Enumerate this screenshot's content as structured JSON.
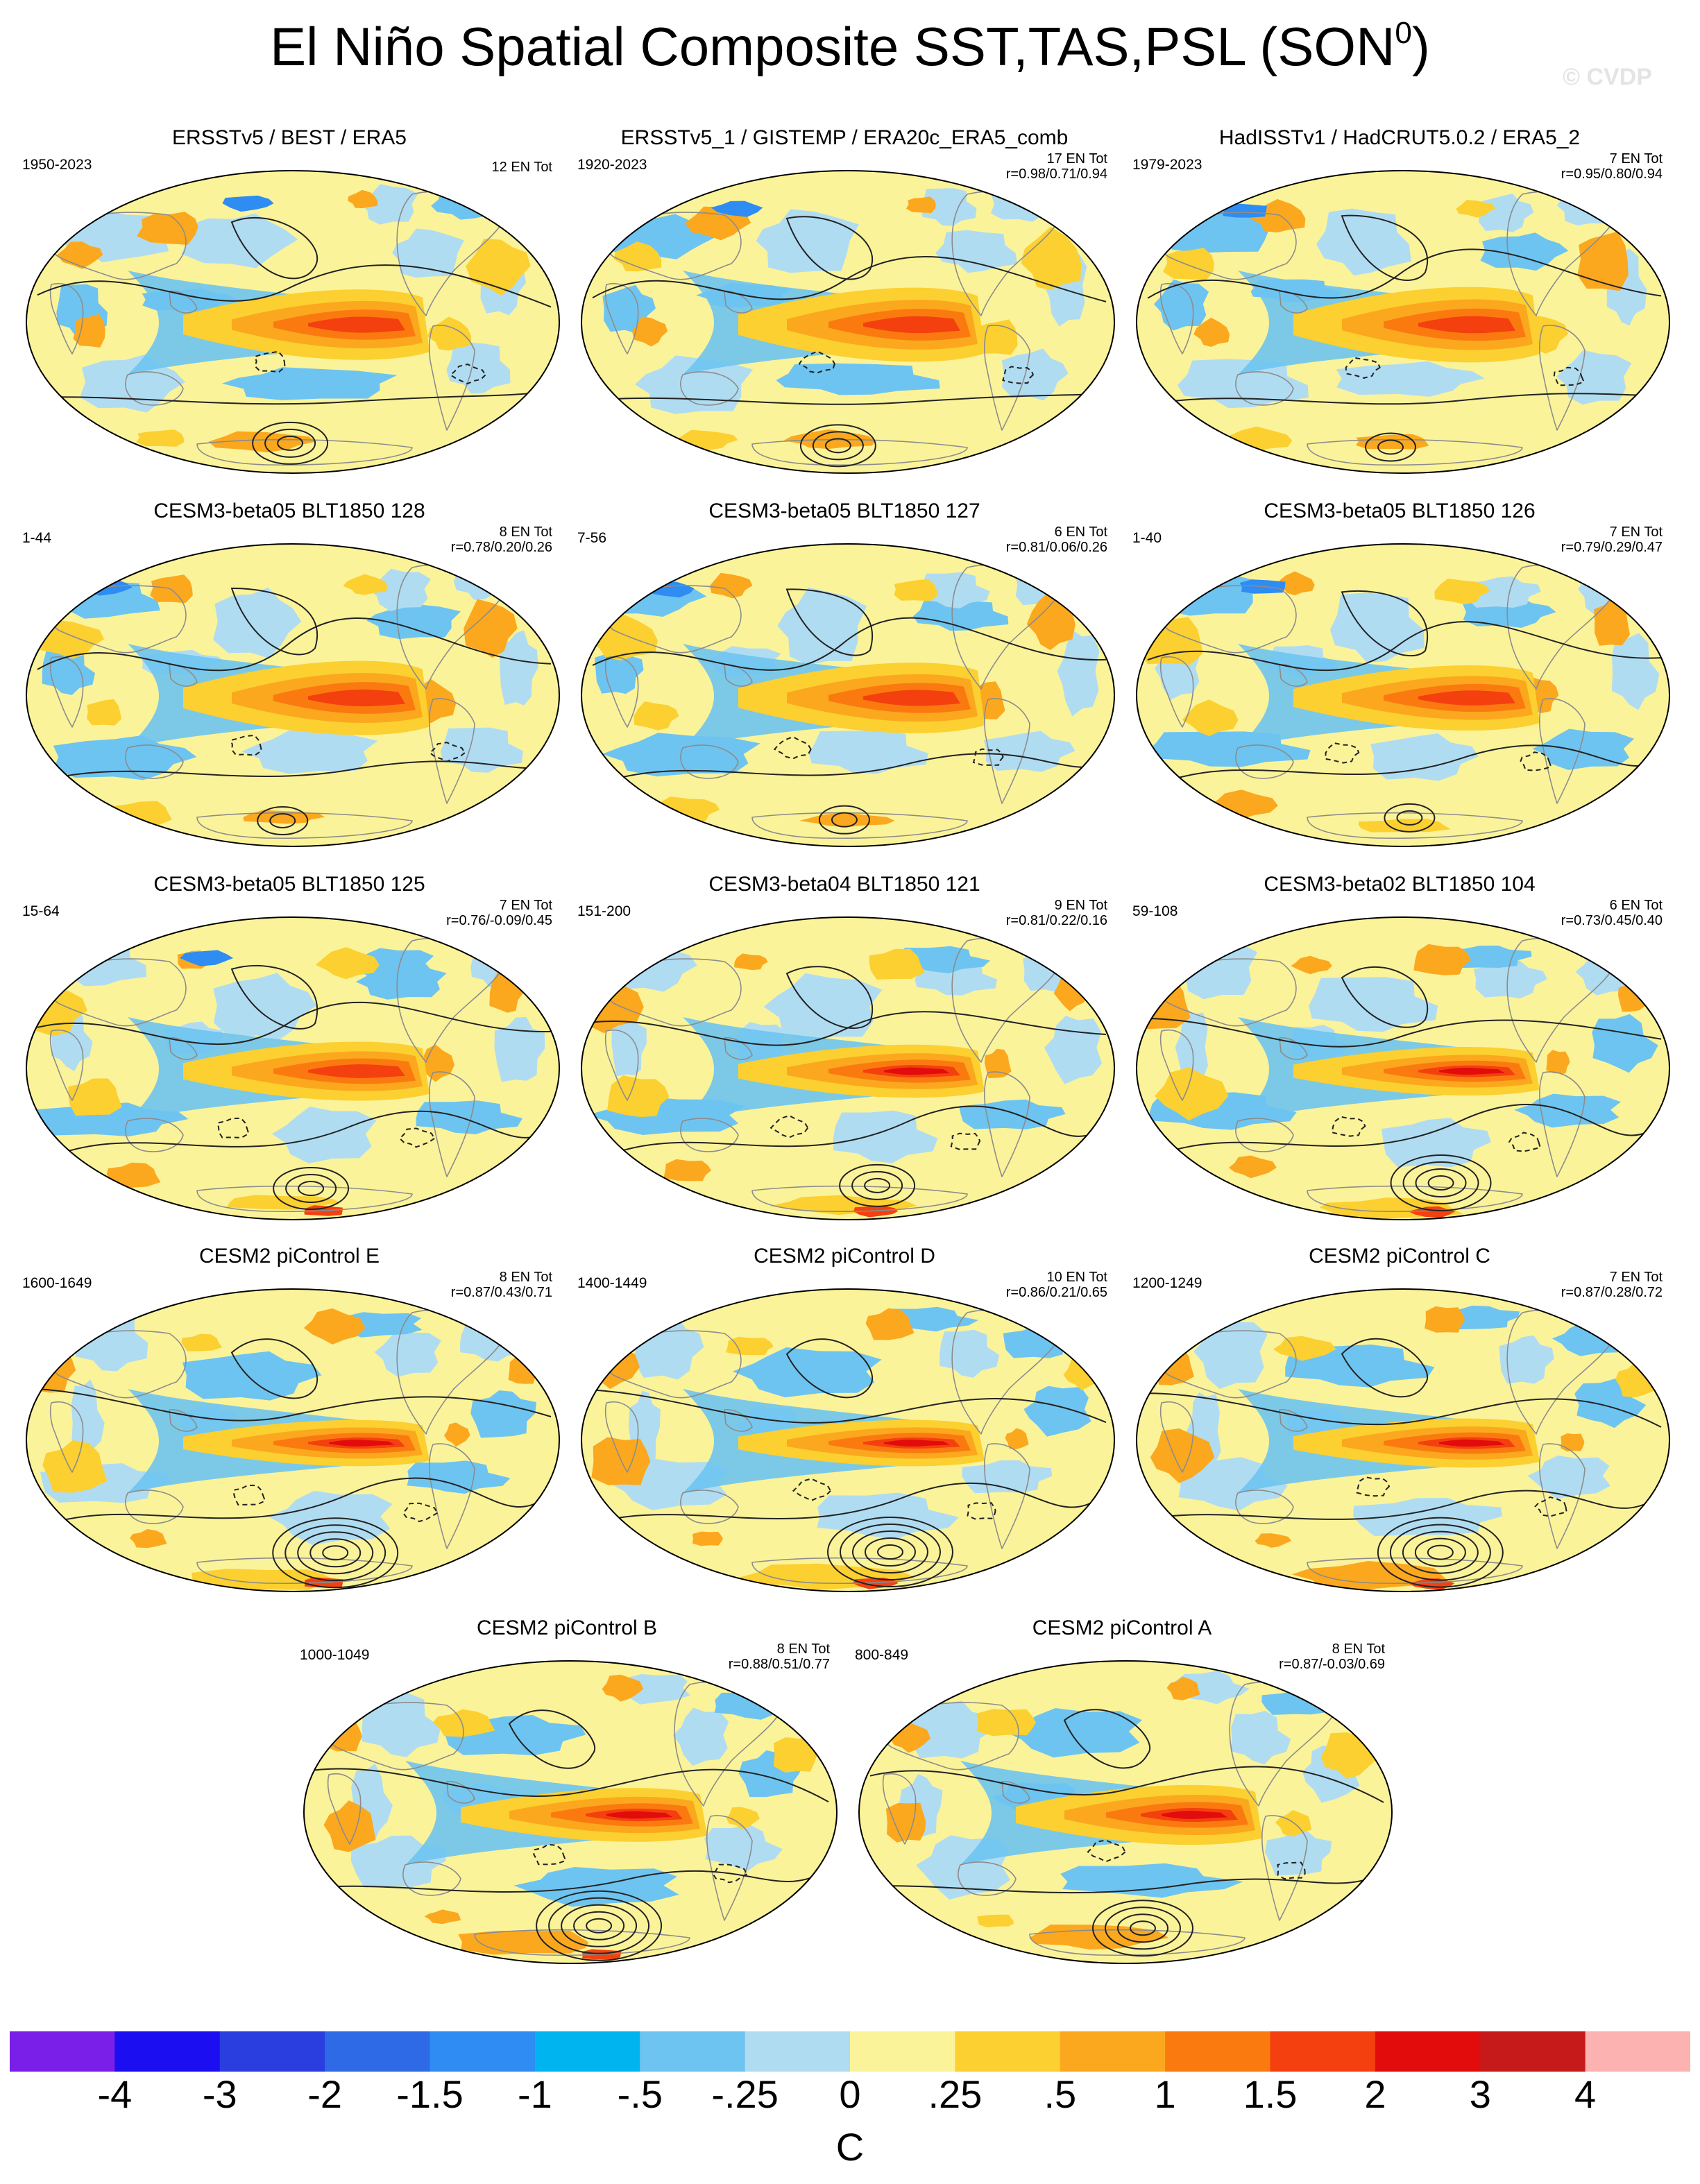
{
  "title": {
    "main": "El Niño Spatial Composite SST,TAS,PSL (SON",
    "superscript": "0",
    "close": ")"
  },
  "watermark": "© CVDP",
  "colors": {
    "levels": [
      "#7a1fe8",
      "#1b0ef0",
      "#2a3ee0",
      "#2f6ae6",
      "#2e8cf2",
      "#00b4f0",
      "#6ec4f0",
      "#b0dcf2",
      "#fbf39a",
      "#fbd030",
      "#fba81e",
      "#fb7a10",
      "#f4400e",
      "#e20c0c",
      "#c61a1a",
      "#fdb2b2"
    ],
    "continent_outline": "#8c8c8c",
    "contour": "#222222"
  },
  "panels": [
    {
      "title": "ERSSTv5 / BEST / ERA5",
      "years": "1950-2023",
      "en_tot": "12 EN Tot",
      "r": ""
    },
    {
      "title": "ERSSTv5_1 / GISTEMP / ERA20c_ERA5_comb",
      "years": "1920-2023",
      "en_tot": "17 EN Tot",
      "r": "r=0.98/0.71/0.94"
    },
    {
      "title": "HadISSTv1 / HadCRUT5.0.2 / ERA5_2",
      "years": "1979-2023",
      "en_tot": "7 EN Tot",
      "r": "r=0.95/0.80/0.94"
    },
    {
      "title": "CESM3-beta05 BLT1850 128",
      "years": "1-44",
      "en_tot": "8 EN Tot",
      "r": "r=0.78/0.20/0.26"
    },
    {
      "title": "CESM3-beta05 BLT1850 127",
      "years": "7-56",
      "en_tot": "6 EN Tot",
      "r": "r=0.81/0.06/0.26"
    },
    {
      "title": "CESM3-beta05 BLT1850 126",
      "years": "1-40",
      "en_tot": "7 EN Tot",
      "r": "r=0.79/0.29/0.47"
    },
    {
      "title": "CESM3-beta05 BLT1850 125",
      "years": "15-64",
      "en_tot": "7 EN Tot",
      "r": "r=0.76/-0.09/0.45"
    },
    {
      "title": "CESM3-beta04 BLT1850 121",
      "years": "151-200",
      "en_tot": "9 EN Tot",
      "r": "r=0.81/0.22/0.16"
    },
    {
      "title": "CESM3-beta02 BLT1850 104",
      "years": "59-108",
      "en_tot": "6 EN Tot",
      "r": "r=0.73/0.45/0.40"
    },
    {
      "title": "CESM2 piControl E",
      "years": "1600-1649",
      "en_tot": "8 EN Tot",
      "r": "r=0.87/0.43/0.71"
    },
    {
      "title": "CESM2 piControl D",
      "years": "1400-1449",
      "en_tot": "10 EN Tot",
      "r": "r=0.86/0.21/0.65"
    },
    {
      "title": "CESM2 piControl C",
      "years": "1200-1249",
      "en_tot": "7 EN Tot",
      "r": "r=0.87/0.28/0.72"
    },
    {
      "title": "CESM2 piControl B",
      "years": "1000-1049",
      "en_tot": "8 EN Tot",
      "r": "r=0.88/0.51/0.77"
    },
    {
      "title": "CESM2 piControl A",
      "years": "800-849",
      "en_tot": "8 EN Tot",
      "r": "r=0.87/-0.03/0.69"
    }
  ],
  "colorbar": {
    "labels": [
      "-4",
      "-3",
      "-2",
      "-1.5",
      "-1",
      "-.5",
      "-.25",
      "0",
      ".25",
      ".5",
      "1",
      "1.5",
      "2",
      "3",
      "4"
    ],
    "units": "C"
  },
  "chart_data": {
    "type": "heatmap",
    "title": "El Niño Spatial Composite SST,TAS,PSL (SON0)",
    "projection": "robinson",
    "levels": [
      -4,
      -3,
      -2,
      -1.5,
      -1,
      -0.5,
      -0.25,
      0,
      0.25,
      0.5,
      1,
      1.5,
      2,
      3,
      4
    ],
    "units": "C",
    "panel_count": 14,
    "features": "warm anomaly (1-3 C) in equatorial central/eastern Pacific; black contours of sea level pressure, dashed negative; strong positive contour centre off West Antarctica"
  }
}
